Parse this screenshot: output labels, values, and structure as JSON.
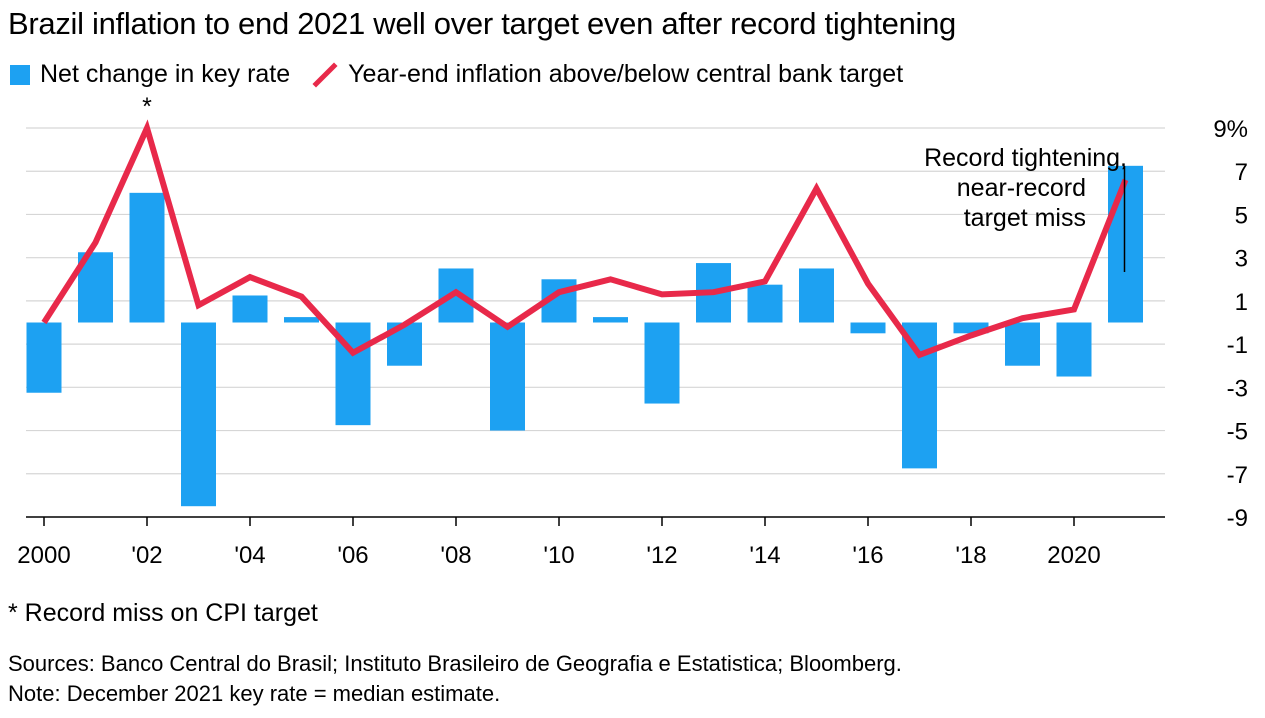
{
  "chart_data": {
    "type": "bar",
    "title": "Brazil inflation to end 2021 well over target even after record tightening",
    "legend": [
      {
        "label": "Net change in key rate",
        "kind": "bar",
        "color": "#1da1f2"
      },
      {
        "label": "Year-end inflation above/below central bank target",
        "kind": "line",
        "color": "#e8294a"
      }
    ],
    "x": [
      2000,
      2001,
      2002,
      2003,
      2004,
      2005,
      2006,
      2007,
      2008,
      2009,
      2010,
      2011,
      2012,
      2013,
      2014,
      2015,
      2016,
      2017,
      2018,
      2019,
      2020,
      2021
    ],
    "series": [
      {
        "name": "Net change in key rate",
        "type": "bar",
        "color": "#1da1f2",
        "values": [
          -3.25,
          3.25,
          6.0,
          -8.5,
          1.25,
          0.25,
          -4.75,
          -2.0,
          2.5,
          -5.0,
          2.0,
          0.25,
          -3.75,
          2.75,
          1.75,
          2.5,
          -0.5,
          -6.75,
          -0.5,
          -2.0,
          -2.5,
          7.25
        ]
      },
      {
        "name": "Year-end inflation above/below central bank target",
        "type": "line",
        "color": "#e8294a",
        "values": [
          0.0,
          3.7,
          9.0,
          0.8,
          2.1,
          1.2,
          -1.4,
          -0.1,
          1.4,
          -0.2,
          1.4,
          2.0,
          1.3,
          1.4,
          1.9,
          6.2,
          1.8,
          -1.5,
          -0.6,
          0.2,
          0.6,
          6.6
        ]
      }
    ],
    "x_ticks": [
      {
        "year": 2000,
        "label": "2000"
      },
      {
        "year": 2002,
        "label": "'02"
      },
      {
        "year": 2004,
        "label": "'04"
      },
      {
        "year": 2006,
        "label": "'06"
      },
      {
        "year": 2008,
        "label": "'08"
      },
      {
        "year": 2010,
        "label": "'10"
      },
      {
        "year": 2012,
        "label": "'12"
      },
      {
        "year": 2014,
        "label": "'14"
      },
      {
        "year": 2016,
        "label": "'16"
      },
      {
        "year": 2018,
        "label": "'18"
      },
      {
        "year": 2020,
        "label": "2020"
      }
    ],
    "y_ticks": [
      {
        "value": 9,
        "label": "9%"
      },
      {
        "value": 7,
        "label": "7"
      },
      {
        "value": 5,
        "label": "5"
      },
      {
        "value": 3,
        "label": "3"
      },
      {
        "value": 1,
        "label": "1"
      },
      {
        "value": -1,
        "label": "-1"
      },
      {
        "value": -3,
        "label": "-3"
      },
      {
        "value": -5,
        "label": "-5"
      },
      {
        "value": -7,
        "label": "-7"
      },
      {
        "value": -9,
        "label": "-9"
      }
    ],
    "ylim": [
      -9,
      9
    ],
    "xlabel": "",
    "ylabel": "",
    "grid": true,
    "annotations": [
      {
        "year": 2002,
        "text": "*"
      },
      {
        "year": 2021,
        "lines": [
          "Record tightening,",
          "near-record",
          "target miss"
        ]
      }
    ]
  },
  "footnote": "* Record miss on CPI target",
  "sources": "Sources: Banco Central do Brasil; Instituto Brasileiro de Geografia e Estatistica; Bloomberg.",
  "note": "Note: December 2021 key rate = median estimate."
}
